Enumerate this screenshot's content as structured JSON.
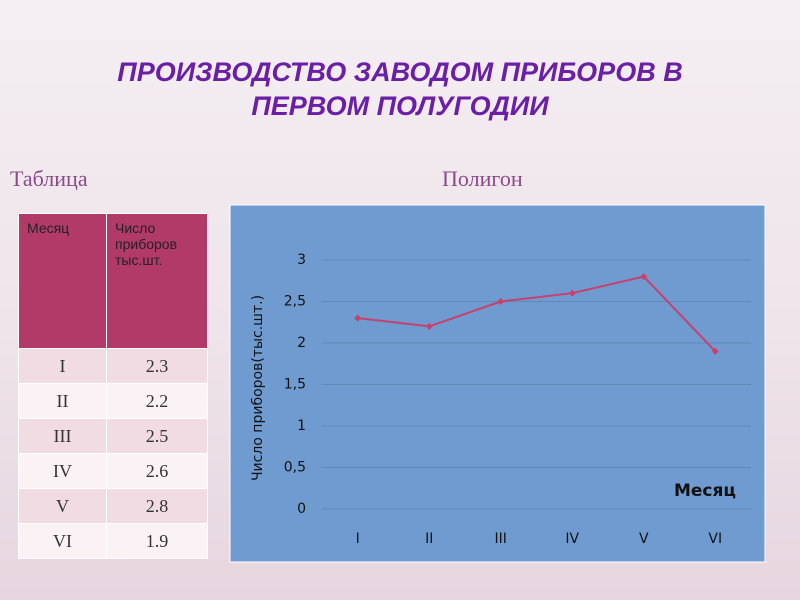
{
  "header": {
    "title": "ПРОИЗВОДСТВО ЗАВОДОМ ПРИБОРОВ В ПЕРВОМ ПОЛУГОДИИ",
    "table_label": "Таблица",
    "chart_label": "Полигон"
  },
  "table": {
    "columns": [
      "Месяц",
      "Число приборов тыс.шт."
    ],
    "rows": [
      [
        "I",
        2.3
      ],
      [
        "II",
        2.2
      ],
      [
        "III",
        2.5
      ],
      [
        "IV",
        2.6
      ],
      [
        "V",
        2.8
      ],
      [
        "VI",
        1.9
      ]
    ]
  },
  "chart_data": {
    "type": "line",
    "x_label": "Месяц",
    "y_label": "Число приборов(тыс.шт.)",
    "categories": [
      "I",
      "II",
      "III",
      "IV",
      "V",
      "VI"
    ],
    "values": [
      2.3,
      2.2,
      2.5,
      2.6,
      2.8,
      1.9
    ],
    "color": "#c8406c",
    "ylim": [
      0,
      3
    ],
    "yticks": [
      0,
      {
        "value": 0.5,
        "label": "0,5"
      },
      1,
      {
        "value": 1.5,
        "label": "1,5"
      },
      2,
      {
        "value": 2.5,
        "label": "2,5"
      },
      3
    ],
    "grid": true
  }
}
